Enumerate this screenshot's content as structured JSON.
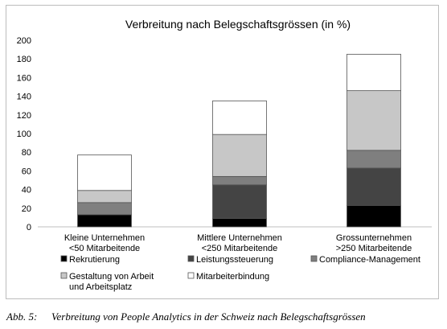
{
  "caption": {
    "label": "Abb. 5:",
    "text": "Verbreitung von People Analytics in der Schweiz nach Belegschaftsgrössen"
  },
  "chart_data": {
    "type": "bar",
    "stacked": true,
    "title": "Verbreitung nach Belegschaftsgrössen (in %)",
    "xlabel": "",
    "ylabel": "",
    "ylim": [
      0,
      200
    ],
    "yticks": [
      0,
      20,
      40,
      60,
      80,
      100,
      120,
      140,
      160,
      180,
      200
    ],
    "grid": false,
    "legend_position": "bottom",
    "categories": [
      [
        "Kleine Unternehmen",
        "<50 Mitarbeitende"
      ],
      [
        "Mittlere Unternehmen",
        "<250 Mitarbeitende"
      ],
      [
        "Grossunternehmen",
        ">250 Mitarbeitende"
      ]
    ],
    "series": [
      {
        "name": "Rekrutierung",
        "color": "#000000",
        "values": [
          13,
          9,
          23
        ]
      },
      {
        "name": "Leistungssteuerung",
        "color": "#444444",
        "values": [
          0,
          36,
          40
        ]
      },
      {
        "name": "Compliance-Management",
        "color": "#7f7f7f",
        "values": [
          13,
          9,
          19
        ]
      },
      {
        "name": [
          "Gestaltung von Arbeit",
          "und Arbeitsplatz"
        ],
        "color": "#c7c7c7",
        "values": [
          13,
          45,
          64
        ]
      },
      {
        "name": "Mitarbeiterbindung",
        "color": "#ffffff",
        "values": [
          38,
          36,
          39
        ]
      }
    ]
  }
}
